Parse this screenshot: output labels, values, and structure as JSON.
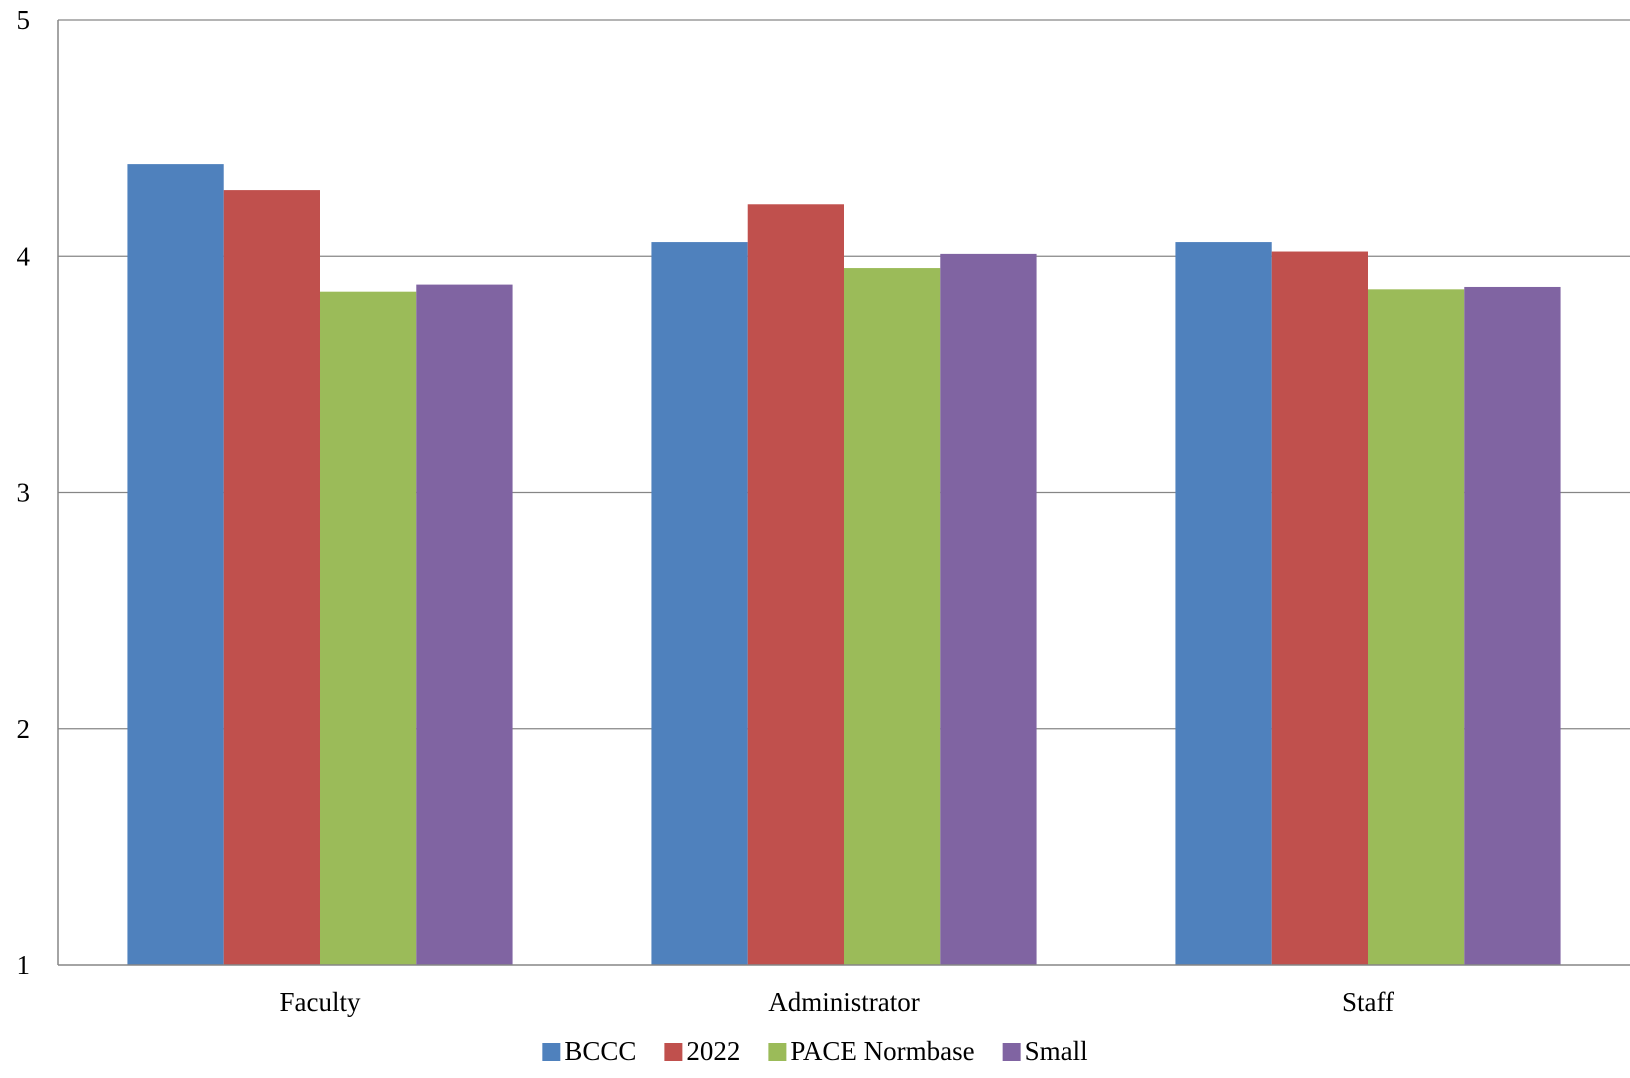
{
  "chart_data": {
    "type": "bar",
    "title": "",
    "xlabel": "",
    "ylabel": "",
    "categories": [
      "Faculty",
      "Administrator",
      "Staff"
    ],
    "ylim": [
      1,
      5
    ],
    "yticks": [
      1,
      2,
      3,
      4,
      5
    ],
    "grid": true,
    "legend_position": "bottom",
    "series": [
      {
        "name": "BCCC",
        "color": "#4F81BD",
        "values": [
          4.39,
          4.06,
          4.06
        ]
      },
      {
        "name": "2022",
        "color": "#C0504D",
        "values": [
          4.28,
          4.22,
          4.02
        ]
      },
      {
        "name": "PACE Normbase",
        "color": "#9BBB59",
        "values": [
          3.85,
          3.95,
          3.86
        ]
      },
      {
        "name": "Small",
        "color": "#8064A2",
        "values": [
          3.88,
          4.01,
          3.87
        ]
      }
    ]
  }
}
